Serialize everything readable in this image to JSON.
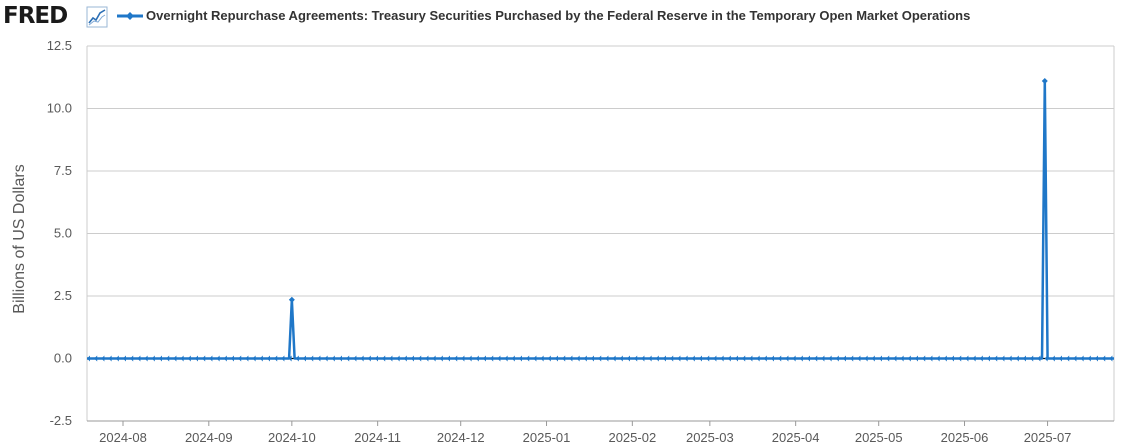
{
  "header": {
    "logo_text": "FRED",
    "logo_icon": "line-chart-icon"
  },
  "colors": {
    "series": "#1f77c8",
    "grid": "#cccccc",
    "zero_line": "#000000",
    "text": "#595959"
  },
  "chart_data": {
    "type": "line",
    "title": "Overnight Repurchase Agreements: Treasury Securities Purchased by the Federal Reserve in the Temporary Open Market Operations",
    "xlabel": "",
    "ylabel": "Billions of US Dollars",
    "ylim": [
      -2.5,
      12.5
    ],
    "yticks": [
      -2.5,
      0.0,
      2.5,
      5.0,
      7.5,
      10.0,
      12.5
    ],
    "ytick_labels": [
      "-2.5",
      "0.0",
      "2.5",
      "5.0",
      "7.5",
      "10.0",
      "12.5"
    ],
    "xlim": [
      "2024-07-19",
      "2025-07-25"
    ],
    "xticks": [
      "2024-08-01",
      "2024-09-01",
      "2024-10-01",
      "2024-11-01",
      "2024-12-01",
      "2025-01-01",
      "2025-02-01",
      "2025-03-01",
      "2025-04-01",
      "2025-05-01",
      "2025-06-01",
      "2025-07-01"
    ],
    "xtick_labels": [
      "2024-08",
      "2024-09",
      "2024-10",
      "2024-11",
      "2024-12",
      "2025-01",
      "2025-02",
      "2025-03",
      "2025-04",
      "2025-05",
      "2025-06",
      "2025-07"
    ],
    "grid": true,
    "legend": "top",
    "series": [
      {
        "name": "Overnight Repurchase Agreements: Treasury Securities Purchased by the Federal Reserve in the Temporary Open Market Operations",
        "baseline_value": 0.0,
        "x": [
          "2024-07-19",
          "2025-07-25"
        ],
        "y": [
          0.0,
          0.0
        ],
        "points": [
          {
            "x": "2024-09-30",
            "y": 0.0
          },
          {
            "x": "2024-10-01",
            "y": 2.35
          },
          {
            "x": "2024-10-02",
            "y": 0.0
          },
          {
            "x": "2025-06-29",
            "y": 0.0
          },
          {
            "x": "2025-06-30",
            "y": 11.1
          },
          {
            "x": "2025-07-01",
            "y": 0.0
          }
        ]
      }
    ]
  }
}
